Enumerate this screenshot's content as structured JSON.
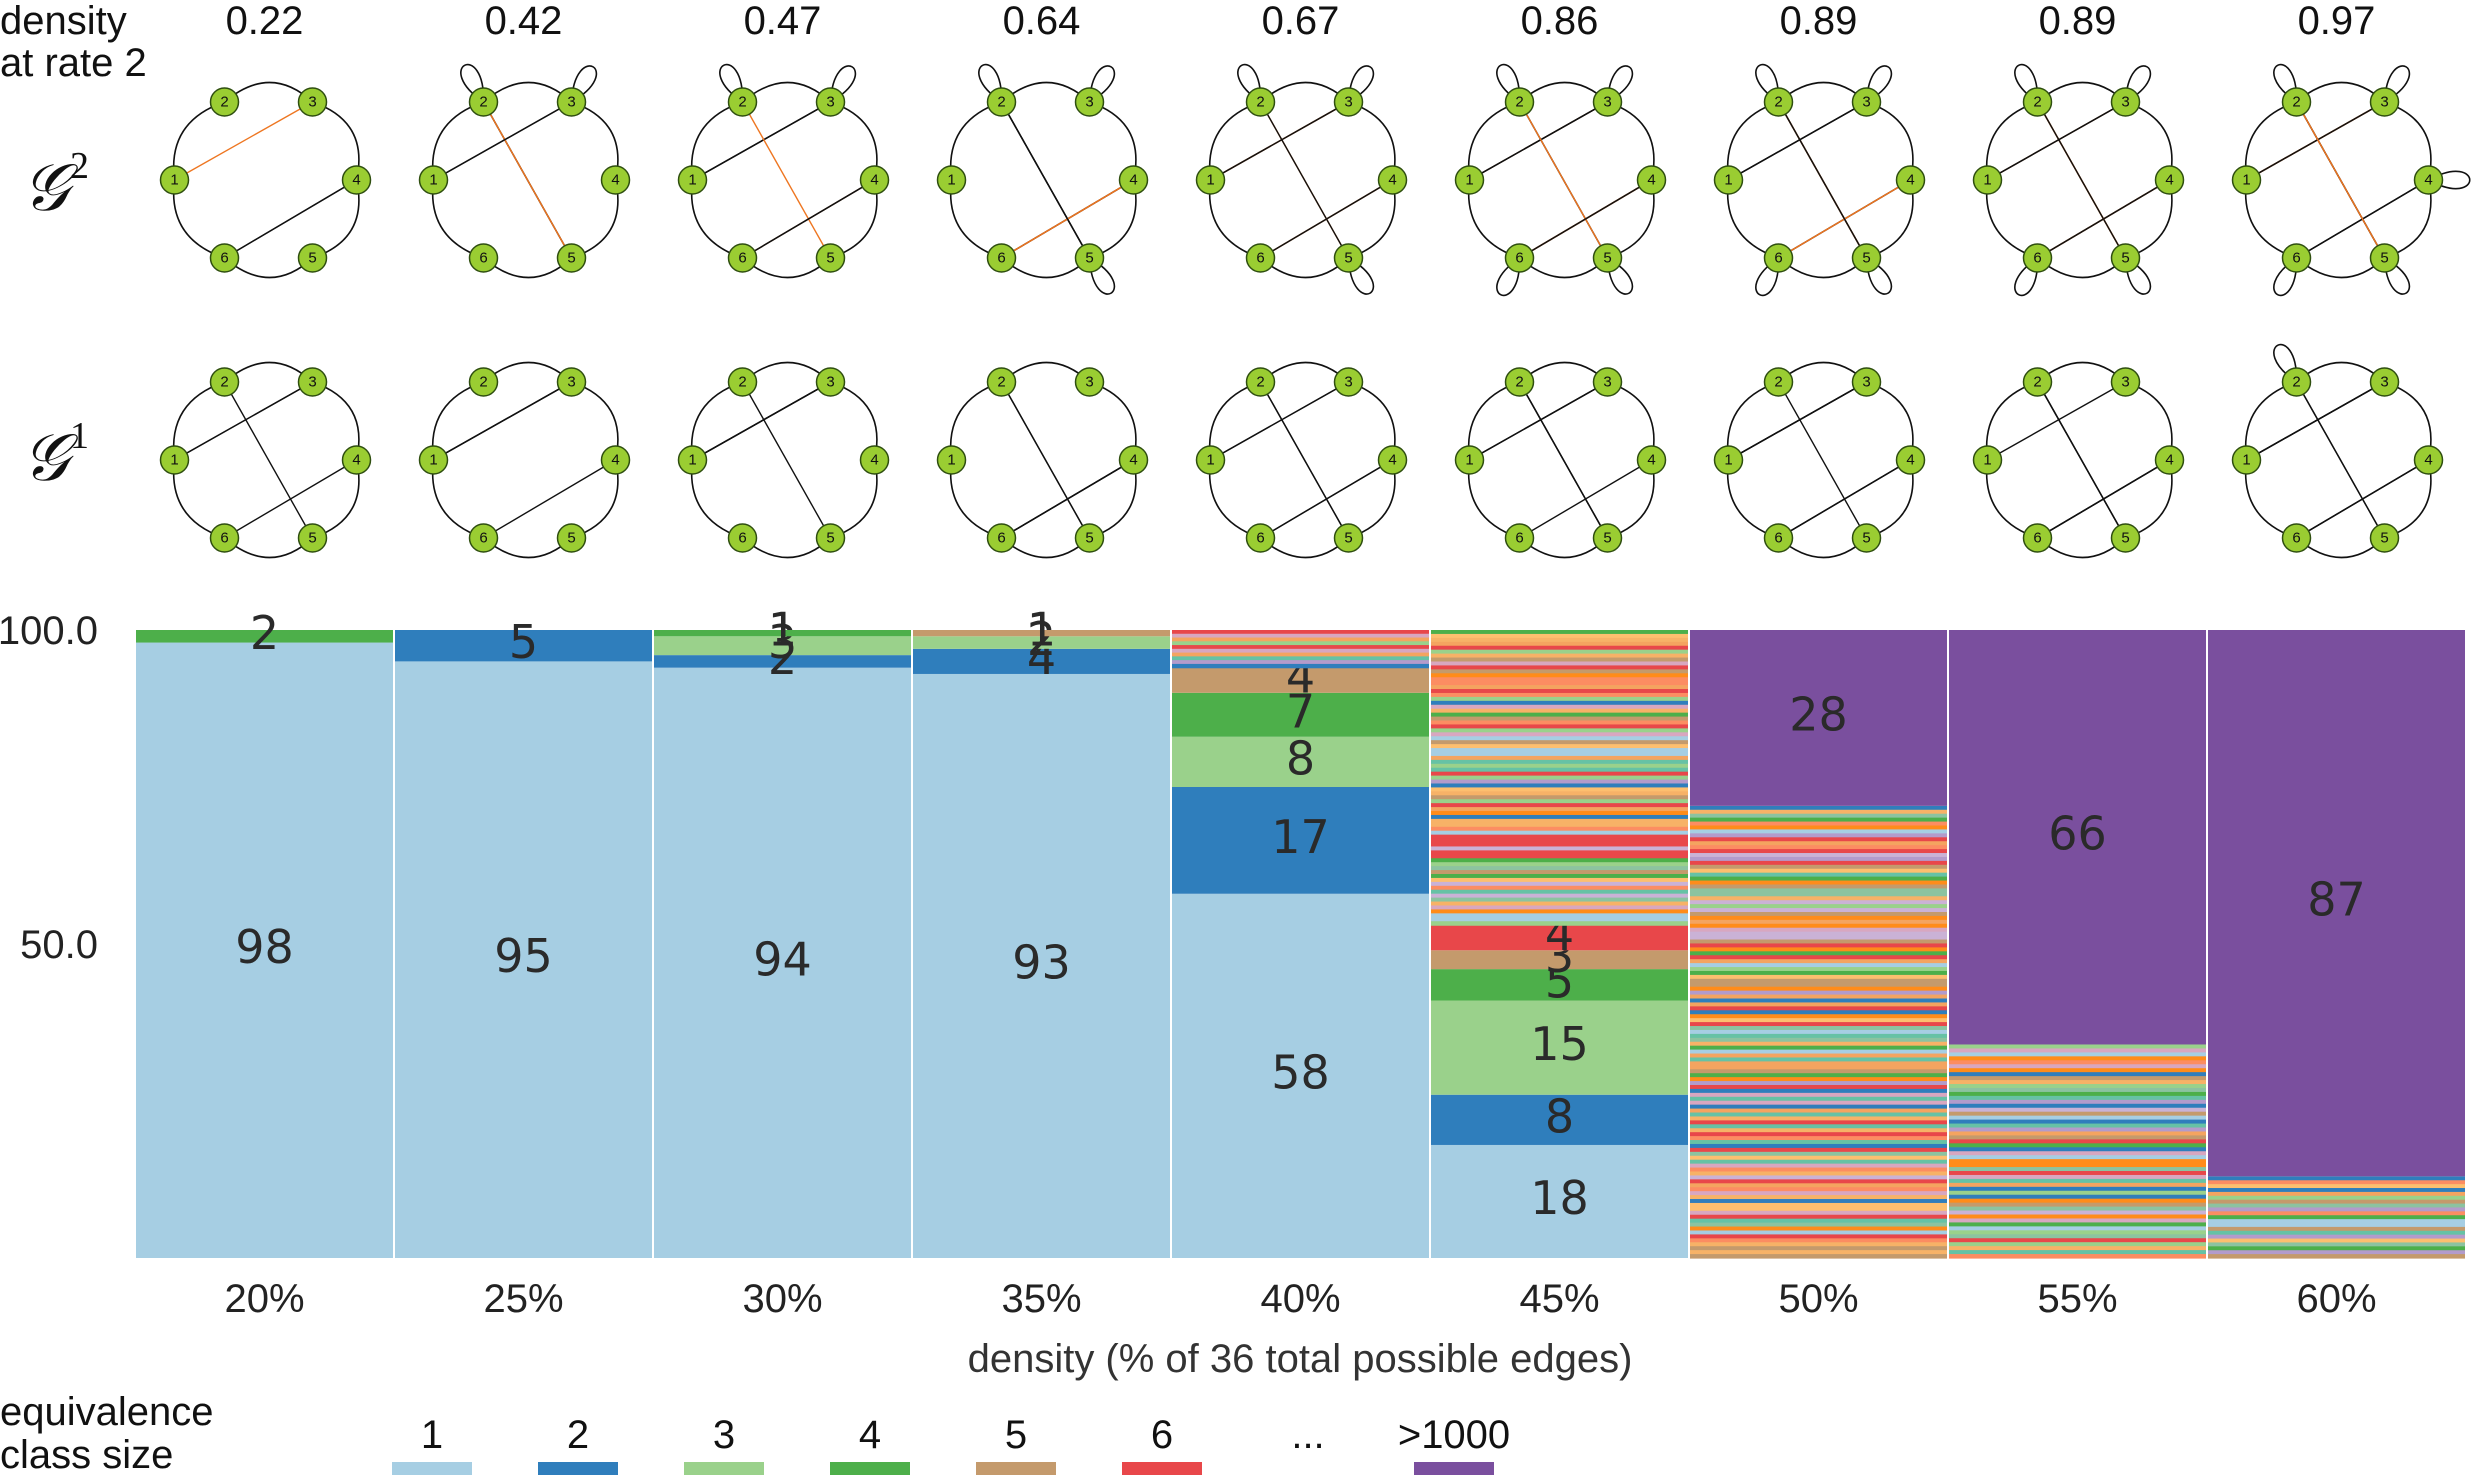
{
  "header": {
    "density_title_line1": "density",
    "density_title_line2": "at rate 2",
    "densities_at_rate_2": [
      "0.22",
      "0.42",
      "0.47",
      "0.64",
      "0.67",
      "0.86",
      "0.89",
      "0.89",
      "0.97"
    ]
  },
  "rows": {
    "g2_label": "𝒢",
    "g2_sup": "2",
    "g1_label": "𝒢",
    "g1_sup": "1"
  },
  "graphs": {
    "node_labels": [
      "1",
      "2",
      "3",
      "4",
      "5",
      "6"
    ],
    "colors": {
      "node_fill": "#9ACD32",
      "node_stroke": "#2f4f10",
      "edge_black": "#111111",
      "edge_orange": "#EE7621"
    }
  },
  "chart_data": {
    "type": "bar",
    "stacked": true,
    "categories": [
      "20%",
      "25%",
      "30%",
      "35%",
      "40%",
      "45%",
      "50%",
      "55%",
      "60%"
    ],
    "xlabel": "density (% of 36 total possible edges)",
    "ylabel": "",
    "ylim": [
      0,
      100
    ],
    "yticks": [
      "100.0",
      "50.0"
    ],
    "columns": [
      {
        "category": "20%",
        "segments": [
          {
            "size": "1",
            "value": 98,
            "label": "98"
          },
          {
            "size": "4",
            "value": 2,
            "label": "2"
          }
        ]
      },
      {
        "category": "25%",
        "segments": [
          {
            "size": "1",
            "value": 95,
            "label": "95"
          },
          {
            "size": "2",
            "value": 5,
            "label": "5"
          }
        ]
      },
      {
        "category": "30%",
        "segments": [
          {
            "size": "1",
            "value": 94,
            "label": "94"
          },
          {
            "size": "2",
            "value": 2,
            "label": "2"
          },
          {
            "size": "3",
            "value": 3,
            "label": "3"
          },
          {
            "size": "4",
            "value": 1,
            "label": "1"
          }
        ]
      },
      {
        "category": "35%",
        "segments": [
          {
            "size": "1",
            "value": 93,
            "label": "93"
          },
          {
            "size": "2",
            "value": 4,
            "label": "4"
          },
          {
            "size": "3",
            "value": 2,
            "label": "2"
          },
          {
            "size": "5",
            "value": 1,
            "label": "1"
          }
        ]
      },
      {
        "category": "40%",
        "segments": [
          {
            "size": "1",
            "value": 58,
            "label": "58"
          },
          {
            "size": "2",
            "value": 17,
            "label": "17"
          },
          {
            "size": "3",
            "value": 8,
            "label": "8"
          },
          {
            "size": "4",
            "value": 7,
            "label": "7"
          },
          {
            "size": "5",
            "value": 4,
            "label": "4"
          },
          {
            "size": "other",
            "value": 6
          }
        ]
      },
      {
        "category": "45%",
        "segments": [
          {
            "size": "1",
            "value": 18,
            "label": "18"
          },
          {
            "size": "2",
            "value": 8,
            "label": "8"
          },
          {
            "size": "3",
            "value": 15,
            "label": "15"
          },
          {
            "size": "4",
            "value": 5,
            "label": "5"
          },
          {
            "size": "5",
            "value": 3,
            "label": "3"
          },
          {
            "size": "6",
            "value": 4,
            "label": "4"
          },
          {
            "size": "other",
            "value": 47
          }
        ]
      },
      {
        "category": "50%",
        "segments": [
          {
            "size": "other",
            "value": 72
          },
          {
            "size": ">1000",
            "value": 28,
            "label": "28"
          }
        ]
      },
      {
        "category": "55%",
        "segments": [
          {
            "size": "other",
            "value": 34
          },
          {
            "size": ">1000",
            "value": 66,
            "label": "66"
          }
        ]
      },
      {
        "category": "60%",
        "segments": [
          {
            "size": "other",
            "value": 13
          },
          {
            "size": ">1000",
            "value": 87,
            "label": "87"
          }
        ]
      }
    ]
  },
  "legend": {
    "title_line1": "equivalence",
    "title_line2": "class size",
    "items": [
      {
        "label": "1",
        "color": "#A6CEE3"
      },
      {
        "label": "2",
        "color": "#2F7EBC"
      },
      {
        "label": "3",
        "color": "#9AD18B"
      },
      {
        "label": "4",
        "color": "#4DAF4A"
      },
      {
        "label": "5",
        "color": "#C49A6C"
      },
      {
        "label": "6",
        "color": "#E8474A"
      },
      {
        "label": "...",
        "color": "none"
      },
      {
        "label": ">1000",
        "color": "#7A4F9E"
      }
    ]
  },
  "palette": {
    "size_1": "#A6CEE3",
    "size_2": "#2F7EBC",
    "size_3": "#9AD18B",
    "size_4": "#4DAF4A",
    "size_5": "#C49A6C",
    "size_6": "#E8474A",
    "big": "#7A4F9E",
    "misc": [
      "#FF8C1A",
      "#F4A460",
      "#C49A6C",
      "#9AD18B",
      "#4DAF4A",
      "#A6CEE3",
      "#2F7EBC",
      "#E8474A",
      "#D8A7C0",
      "#B39BCB",
      "#F7B267",
      "#8CC3A0",
      "#FDBF6F",
      "#CAB2D6",
      "#66C2A5",
      "#FC8D62"
    ]
  }
}
